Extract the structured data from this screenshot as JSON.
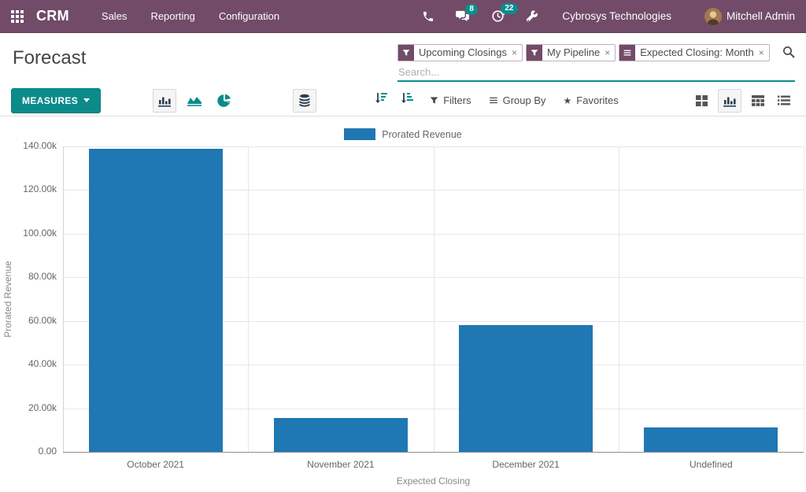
{
  "navbar": {
    "app_name": "CRM",
    "menus": [
      {
        "label": "Sales"
      },
      {
        "label": "Reporting"
      },
      {
        "label": "Configuration"
      }
    ],
    "messages_badge": "8",
    "activities_badge": "22",
    "company": "Cybrosys Technologies",
    "user": "Mitchell Admin"
  },
  "header": {
    "title": "Forecast",
    "search_placeholder": "Search...",
    "facets": [
      {
        "icon": "filter-icon",
        "label": "Upcoming Closings",
        "remove": "×"
      },
      {
        "icon": "filter-icon",
        "label": "My Pipeline",
        "remove": "×"
      },
      {
        "icon": "group-by-icon",
        "label": "Expected Closing: Month",
        "remove": "×"
      }
    ]
  },
  "toolbar": {
    "measures_label": "MEASURES",
    "filters_label": "Filters",
    "group_by_label": "Group By",
    "favorites_label": "Favorites",
    "favorites_star": "★"
  },
  "chart_data": {
    "type": "bar",
    "title": "",
    "legend": [
      "Prorated Revenue"
    ],
    "categories": [
      "October 2021",
      "November 2021",
      "December 2021",
      "Undefined"
    ],
    "values": [
      139000,
      15500,
      58000,
      11300
    ],
    "xlabel": "Expected Closing",
    "ylabel": "Prorated Revenue",
    "ylim": [
      0,
      140000
    ],
    "y_ticks": [
      "0.00",
      "20.00k",
      "40.00k",
      "60.00k",
      "80.00k",
      "100.00k",
      "120.00k",
      "140.00k"
    ],
    "grid": true,
    "legend_position": "top-center",
    "bar_color": "#1f77b4"
  },
  "colors": {
    "navbar_bg": "#714B67",
    "accent_teal": "#0c8b8b",
    "bar_blue": "#1f77b4",
    "badge_teal": "#0c8d8d"
  }
}
